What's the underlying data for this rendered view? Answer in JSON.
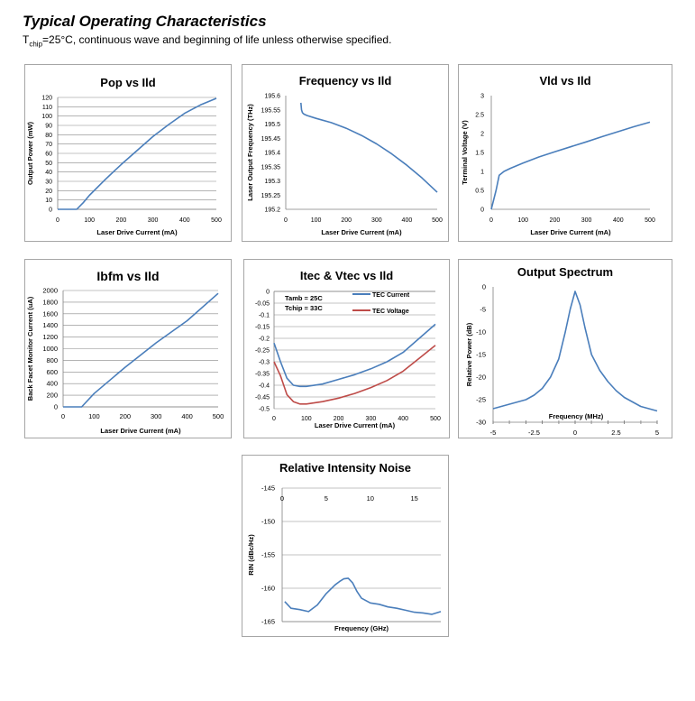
{
  "header": {
    "title": "Typical Operating Characteristics",
    "subtitle_sym": "T",
    "subtitle_sub": "chip",
    "subtitle_rest": "=25°C, continuous wave and beginning of life unless otherwise specified."
  },
  "colors": {
    "blue": "#4a7ebb",
    "red": "#be4b48",
    "grid": "#888888",
    "axis": "#808080"
  },
  "chart_data": [
    {
      "id": "pop",
      "type": "line",
      "title": "Pop vs Ild",
      "xlabel": "Laser Drive Current (mA)",
      "ylabel": "Output Power (mW)",
      "xlim": [
        0,
        500
      ],
      "ylim": [
        0,
        120
      ],
      "xticks": [
        0,
        100,
        200,
        300,
        400,
        500
      ],
      "xtick_labels": [
        "0",
        "100",
        "200",
        "300",
        "400",
        "500"
      ],
      "yticks": [
        0,
        10,
        20,
        30,
        40,
        50,
        60,
        70,
        80,
        90,
        100,
        110,
        120
      ],
      "ytick_labels": [
        "0",
        "10",
        "20",
        "30",
        "40",
        "50",
        "60",
        "70",
        "80",
        "90",
        "100",
        "110",
        "120"
      ],
      "grid": true,
      "series": [
        {
          "color": "blue",
          "x": [
            0,
            40,
            60,
            80,
            100,
            150,
            200,
            250,
            300,
            350,
            400,
            450,
            500
          ],
          "y": [
            0,
            0,
            0,
            7,
            15,
            32,
            48,
            63,
            78,
            91,
            103,
            112,
            119
          ]
        }
      ]
    },
    {
      "id": "freq",
      "type": "line",
      "title": "Frequency vs Ild",
      "xlabel": "Laser Drive Current (mA)",
      "ylabel": "Laser Output Frequency (THz)",
      "xlim": [
        0,
        500
      ],
      "ylim": [
        195.2,
        195.6
      ],
      "xticks": [
        0,
        100,
        200,
        300,
        400,
        500
      ],
      "xtick_labels": [
        "0",
        "100",
        "200",
        "300",
        "400",
        "500"
      ],
      "yticks": [
        195.2,
        195.25,
        195.3,
        195.35,
        195.4,
        195.45,
        195.5,
        195.55,
        195.6
      ],
      "ytick_labels": [
        "195.2",
        "195.25",
        "195.3",
        "195.35",
        "195.4",
        "195.45",
        "195.5",
        "195.55",
        "195.6"
      ],
      "grid": false,
      "series": [
        {
          "color": "blue",
          "x": [
            50,
            52,
            55,
            60,
            70,
            100,
            150,
            200,
            250,
            300,
            350,
            400,
            450,
            500
          ],
          "y": [
            195.575,
            195.55,
            195.54,
            195.535,
            195.53,
            195.52,
            195.505,
            195.485,
            195.46,
            195.43,
            195.395,
            195.355,
            195.31,
            195.26
          ]
        }
      ]
    },
    {
      "id": "vld",
      "type": "line",
      "title": "Vld vs Ild",
      "xlabel": "Laser Drive Current (mA)",
      "ylabel": "Terminal Voltage (V)",
      "xlim": [
        0,
        500
      ],
      "ylim": [
        0,
        3
      ],
      "xticks": [
        0,
        100,
        200,
        300,
        400,
        500
      ],
      "xtick_labels": [
        "0",
        "100",
        "200",
        "300",
        "400",
        "500"
      ],
      "yticks": [
        0,
        0.5,
        1,
        1.5,
        2,
        2.5,
        3
      ],
      "ytick_labels": [
        "0",
        "0.5",
        "1",
        "1.5",
        "2",
        "2.5",
        "3"
      ],
      "grid": false,
      "series": [
        {
          "color": "blue",
          "x": [
            0,
            15,
            25,
            40,
            60,
            100,
            150,
            200,
            250,
            300,
            350,
            400,
            450,
            500
          ],
          "y": [
            0,
            0.5,
            0.9,
            1.0,
            1.08,
            1.22,
            1.38,
            1.52,
            1.65,
            1.78,
            1.92,
            2.05,
            2.18,
            2.3
          ]
        }
      ]
    },
    {
      "id": "ibfm",
      "type": "line",
      "title": "Ibfm vs Ild",
      "xlabel": "Laser Drive Current (mA)",
      "ylabel": "Back Facet Monitor Current (uA)",
      "xlim": [
        0,
        500
      ],
      "ylim": [
        0,
        2000
      ],
      "xticks": [
        0,
        100,
        200,
        300,
        400,
        500
      ],
      "xtick_labels": [
        "0",
        "100",
        "200",
        "300",
        "400",
        "500"
      ],
      "yticks": [
        0,
        200,
        400,
        600,
        800,
        1000,
        1200,
        1400,
        1600,
        1800,
        2000
      ],
      "ytick_labels": [
        "0",
        "200",
        "400",
        "600",
        "800",
        "1000",
        "1200",
        "1400",
        "1600",
        "1800",
        "2000"
      ],
      "grid": true,
      "series": [
        {
          "color": "blue",
          "x": [
            0,
            60,
            100,
            200,
            300,
            400,
            500
          ],
          "y": [
            0,
            0,
            230,
            680,
            1100,
            1480,
            1950
          ]
        }
      ]
    },
    {
      "id": "itec",
      "type": "line",
      "title": "Itec & Vtec vs Ild",
      "xlabel": "Laser Drive Current (mA)",
      "ylabel": "",
      "xlim": [
        0,
        500
      ],
      "ylim": [
        -0.5,
        0
      ],
      "xticks": [
        0,
        100,
        200,
        300,
        400,
        500
      ],
      "xtick_labels": [
        "0",
        "100",
        "200",
        "300",
        "400",
        "500"
      ],
      "yticks": [
        -0.5,
        -0.45,
        -0.4,
        -0.35,
        -0.3,
        -0.25,
        -0.2,
        -0.15,
        -0.1,
        -0.05,
        0
      ],
      "ytick_labels": [
        "-0.5",
        "-0.45",
        "-0.4",
        "-0.35",
        "-0.3",
        "-0.25",
        "-0.2",
        "-0.15",
        "-0.1",
        "-0.05",
        "0"
      ],
      "grid": true,
      "annotations": [
        "Tamb = 25C",
        "Tchip = 33C"
      ],
      "legend_position": "top-right",
      "series": [
        {
          "name": "TEC Current",
          "color": "blue",
          "x": [
            0,
            20,
            40,
            60,
            80,
            100,
            150,
            200,
            250,
            300,
            350,
            400,
            450,
            500
          ],
          "y": [
            -0.22,
            -0.3,
            -0.37,
            -0.4,
            -0.405,
            -0.405,
            -0.395,
            -0.375,
            -0.355,
            -0.33,
            -0.3,
            -0.26,
            -0.2,
            -0.14
          ]
        },
        {
          "name": "TEC Voltage",
          "color": "red",
          "x": [
            0,
            20,
            40,
            60,
            80,
            100,
            150,
            200,
            250,
            300,
            350,
            400,
            450,
            500
          ],
          "y": [
            -0.3,
            -0.36,
            -0.44,
            -0.47,
            -0.48,
            -0.48,
            -0.47,
            -0.455,
            -0.435,
            -0.41,
            -0.38,
            -0.34,
            -0.285,
            -0.23
          ]
        }
      ]
    },
    {
      "id": "spectrum",
      "type": "line",
      "title": "Output Spectrum",
      "xlabel": "Frequency (MHz)",
      "ylabel": "Relative Power (dB)",
      "xlim": [
        -5,
        5
      ],
      "ylim": [
        -30,
        0
      ],
      "xticks": [
        -5,
        -2.5,
        0,
        2.5,
        5
      ],
      "xtick_labels": [
        "-5",
        "-2.5",
        "0",
        "2.5",
        "5"
      ],
      "yticks": [
        -30,
        -25,
        -20,
        -15,
        -10,
        -5,
        0
      ],
      "ytick_labels": [
        "-30",
        "-25",
        "-20",
        "-15",
        "-10",
        "-5",
        "0"
      ],
      "grid": false,
      "series": [
        {
          "color": "blue",
          "x": [
            -5,
            -4.5,
            -4,
            -3.5,
            -3,
            -2.5,
            -2,
            -1.5,
            -1,
            -0.6,
            -0.3,
            0,
            0.3,
            0.6,
            1,
            1.5,
            2,
            2.5,
            3,
            3.5,
            4,
            4.5,
            5
          ],
          "y": [
            -27,
            -26.5,
            -26,
            -25.5,
            -25,
            -24,
            -22.5,
            -20,
            -16,
            -10,
            -5,
            -1,
            -4,
            -9,
            -15,
            -18.5,
            -21,
            -23,
            -24.5,
            -25.5,
            -26.5,
            -27,
            -27.5
          ]
        }
      ]
    },
    {
      "id": "rin",
      "type": "line",
      "title": "Relative Intensity Noise",
      "xlabel": "Frequency (GHz)",
      "ylabel": "RIN (dBc/Hz)",
      "xlim": [
        0,
        18
      ],
      "ylim": [
        -165,
        -145
      ],
      "xticks": [
        0,
        5,
        10,
        15
      ],
      "xtick_labels": [
        "0",
        "5",
        "10",
        "15"
      ],
      "yticks": [
        -145,
        -150,
        -155,
        -160,
        -165
      ],
      "ytick_labels": [
        "-145",
        "-150",
        "-155",
        "-160",
        "-165"
      ],
      "grid": true,
      "series": [
        {
          "color": "blue",
          "x": [
            0.3,
            1,
            2,
            3,
            4,
            5,
            6,
            6.5,
            7,
            7.5,
            8,
            8.5,
            9,
            10,
            11,
            12,
            13,
            14,
            15,
            16,
            17,
            18
          ],
          "y": [
            -162,
            -163,
            -163.2,
            -163.5,
            -162.5,
            -160.8,
            -159.5,
            -159,
            -158.6,
            -158.5,
            -159.2,
            -160.5,
            -161.5,
            -162.2,
            -162.4,
            -162.8,
            -163,
            -163.3,
            -163.6,
            -163.7,
            -163.9,
            -163.5
          ]
        }
      ]
    }
  ]
}
